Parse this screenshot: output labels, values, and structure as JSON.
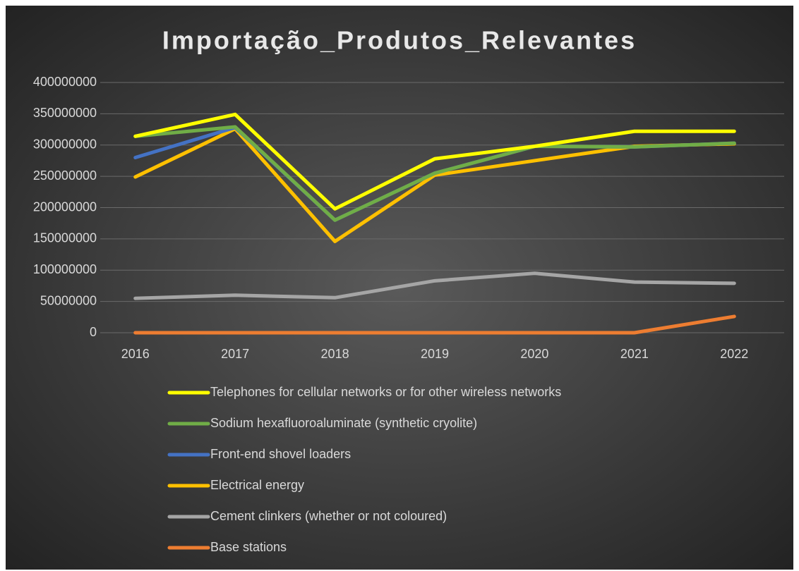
{
  "chart_data": {
    "type": "line",
    "title": "Importação_Produtos_Relevantes",
    "categories": [
      "2016",
      "2017",
      "2018",
      "2019",
      "2020",
      "2021",
      "2022"
    ],
    "series": [
      {
        "name": "Telephones for cellular networks or for other wireless networks",
        "color": "#ffff00",
        "values": [
          314000000,
          349000000,
          198000000,
          278000000,
          298000000,
          322000000,
          322000000
        ]
      },
      {
        "name": "Sodium hexafluoroaluminate (synthetic cryolite)",
        "color": "#70ad47",
        "values": [
          314000000,
          329000000,
          180000000,
          255000000,
          298000000,
          297000000,
          303000000
        ]
      },
      {
        "name": "Front-end shovel loaders",
        "color": "#4472c4",
        "values": [
          280000000,
          328000000,
          180000000,
          255000000,
          298000000,
          297000000,
          303000000
        ]
      },
      {
        "name": "Electrical energy",
        "color": "#ffc000",
        "values": [
          249000000,
          326000000,
          146000000,
          252000000,
          275000000,
          298000000,
          302000000
        ]
      },
      {
        "name": "Cement clinkers (whether or not coloured)",
        "color": "#a5a5a5",
        "values": [
          55000000,
          60000000,
          56000000,
          83000000,
          95000000,
          81000000,
          79000000
        ]
      },
      {
        "name": "Base stations",
        "color": "#ed7d31",
        "values": [
          0,
          0,
          0,
          0,
          0,
          0,
          26000000
        ]
      }
    ],
    "ylim": [
      0,
      400000000
    ],
    "yticks": [
      0,
      50000000,
      100000000,
      150000000,
      200000000,
      250000000,
      300000000,
      350000000,
      400000000
    ],
    "grid": true,
    "legend": "bottom"
  }
}
